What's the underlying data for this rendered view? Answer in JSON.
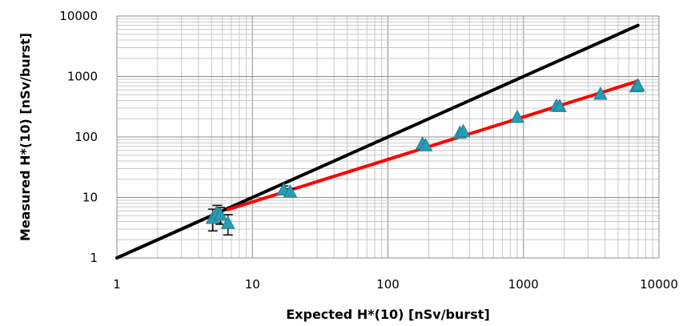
{
  "chart_data": {
    "type": "scatter",
    "title": "",
    "xlabel": "Expected H*(10) [nSv/burst]",
    "ylabel": "Measured H*(10) [nSv/burst]",
    "x_scale": "log",
    "y_scale": "log",
    "xlim": [
      1,
      10000
    ],
    "ylim": [
      1,
      10000
    ],
    "grid": true,
    "legend": "none",
    "x_ticks": [
      "1",
      "10",
      "100",
      "1000",
      "10000"
    ],
    "y_ticks": [
      "1",
      "10",
      "100",
      "1000",
      "10000"
    ],
    "series": [
      {
        "kind": "points",
        "marker": "triangle",
        "color": "#2a9bb0",
        "x": [
          5.1,
          5.5,
          5.8,
          6.6,
          17,
          19,
          180,
          190,
          340,
          360,
          900,
          1750,
          1850,
          3700,
          6800,
          7000
        ],
        "y": [
          4.6,
          5.6,
          5.2,
          3.8,
          13.5,
          12.5,
          78,
          73,
          118,
          125,
          215,
          330,
          325,
          520,
          690,
          710
        ],
        "yerr": [
          1.8,
          1.8,
          1.6,
          1.4,
          2.0,
          1.5,
          0,
          0,
          0,
          0,
          0,
          0,
          0,
          0,
          0,
          0
        ]
      },
      {
        "kind": "line",
        "color": "#000000",
        "x": [
          1,
          7000
        ],
        "y": [
          1,
          7000
        ]
      },
      {
        "kind": "line",
        "color": "#ff0000",
        "x": [
          6.6,
          7000
        ],
        "y": [
          6.3,
          840
        ]
      }
    ]
  }
}
